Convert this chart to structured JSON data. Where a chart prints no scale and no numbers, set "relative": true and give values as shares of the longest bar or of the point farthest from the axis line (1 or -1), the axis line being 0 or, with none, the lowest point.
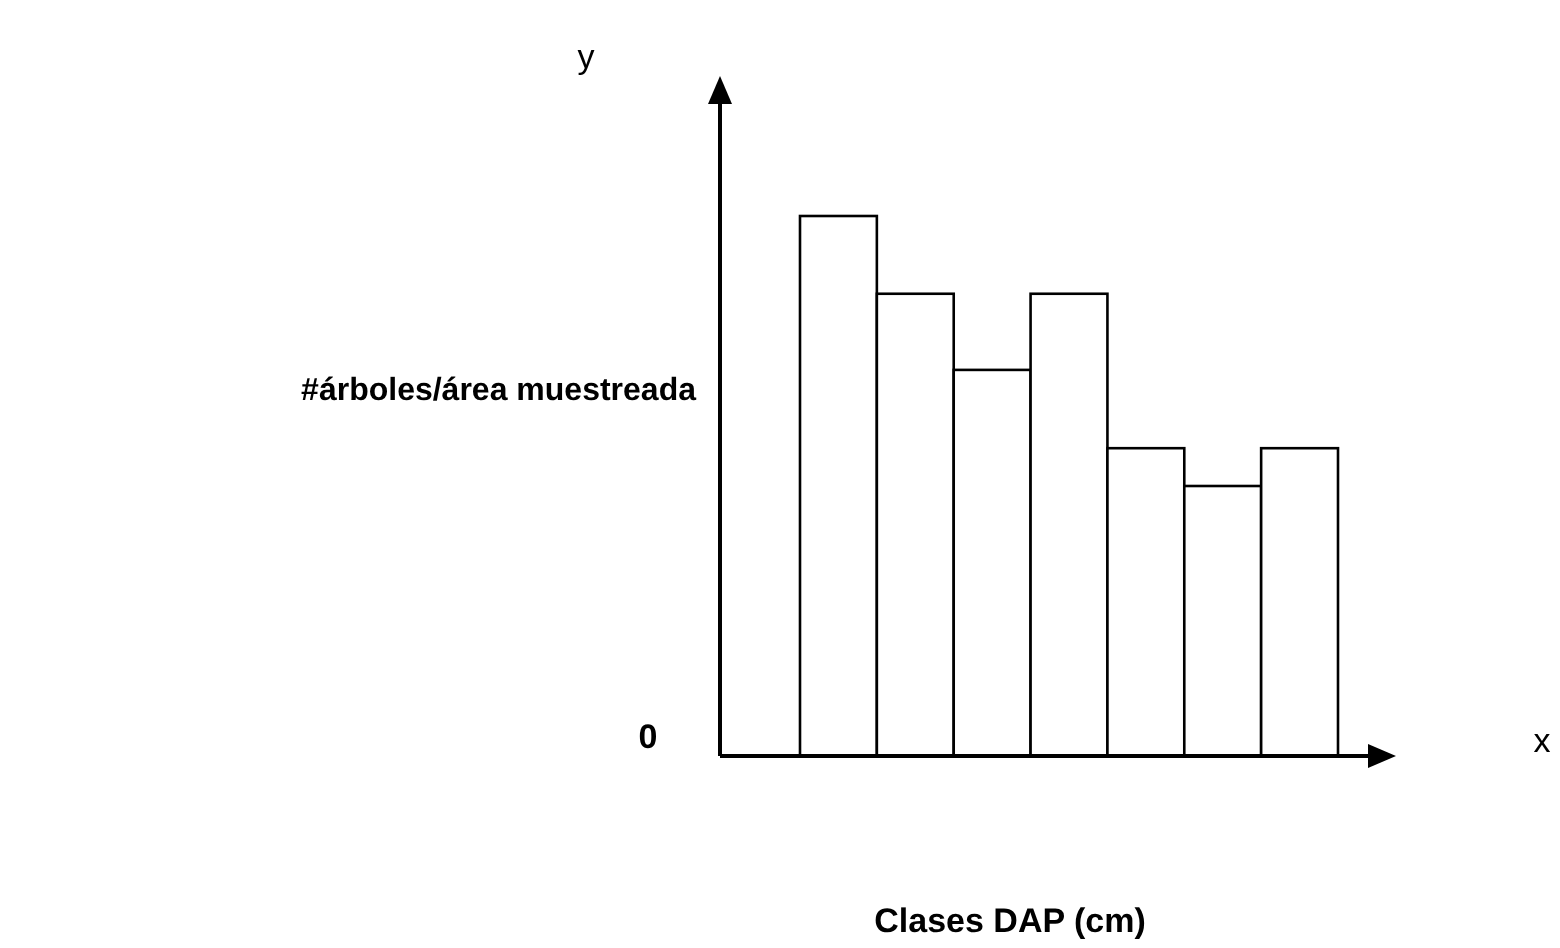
{
  "chart_data": {
    "type": "bar",
    "relative": true,
    "xlabel": "Clases DAP (cm)",
    "ylabel": "#árboles/área muestreada",
    "categories": [
      null,
      null,
      null,
      null,
      null,
      null,
      null
    ],
    "values": [
      1,
      0.856,
      0.715,
      0.856,
      0.57,
      0.5,
      0.57
    ],
    "color": "#ffffff",
    "annotations": [
      "y",
      "x",
      "0"
    ]
  }
}
